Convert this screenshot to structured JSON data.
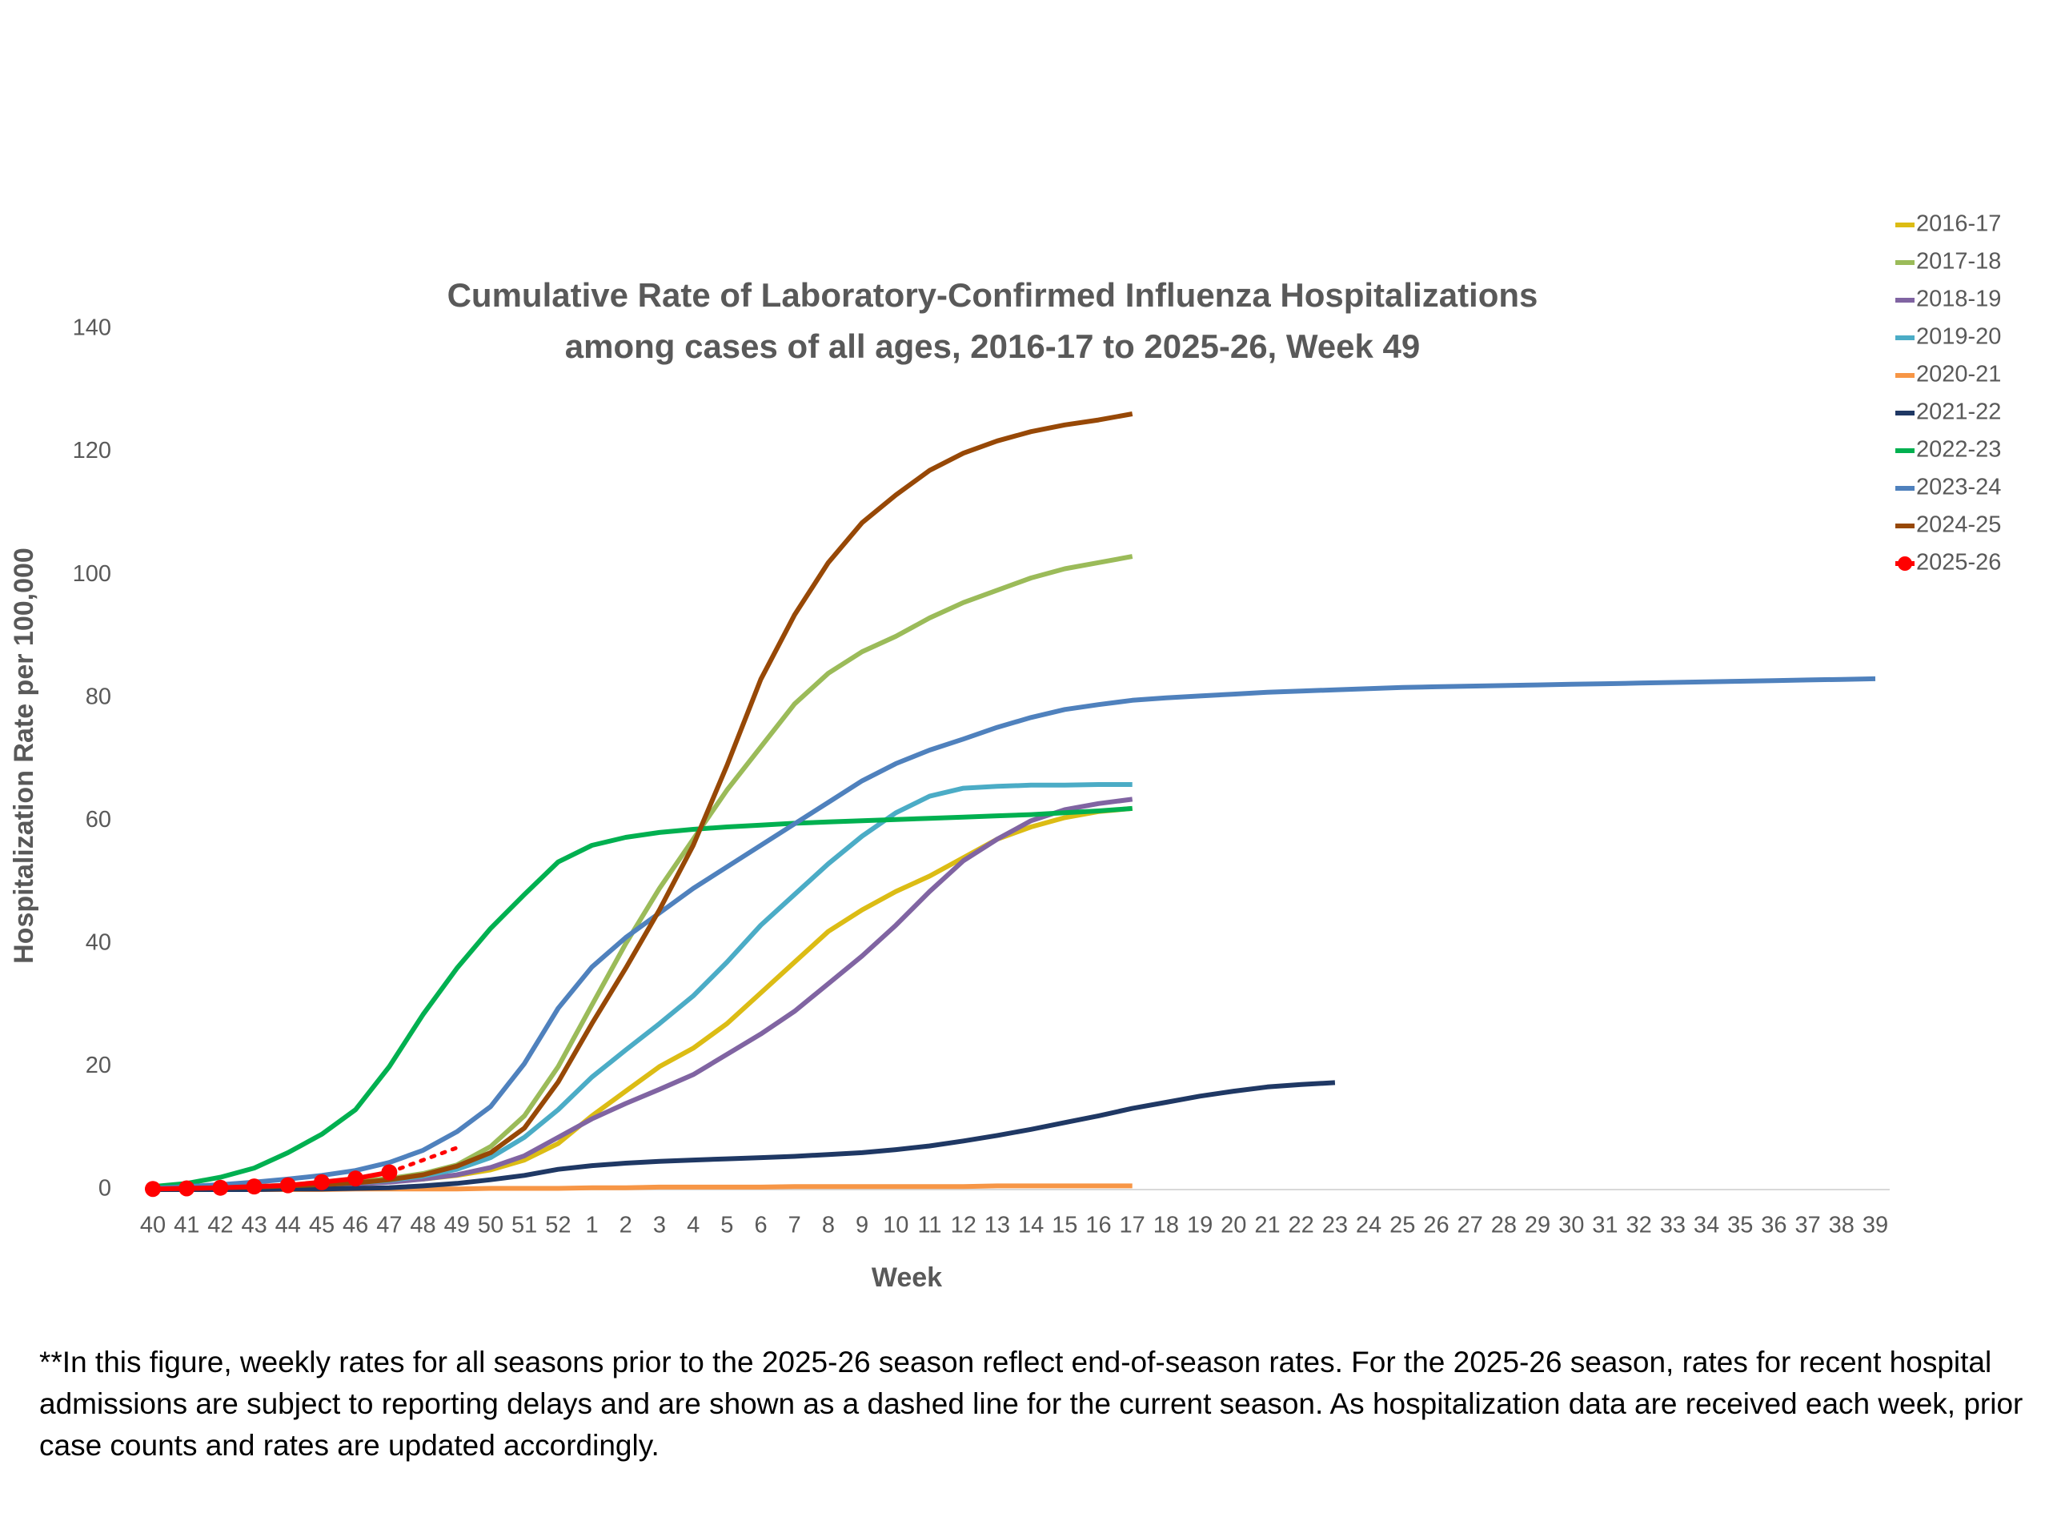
{
  "chart_data": {
    "type": "line",
    "title": "Cumulative Rate of Laboratory-Confirmed Influenza Hospitalizations",
    "subtitle": "among cases of all ages, 2016-17 to 2025-26, Week 49",
    "x_label": "Week",
    "y_label": "Hospitalization Rate per 100,000",
    "categories": [
      "40",
      "41",
      "42",
      "43",
      "44",
      "45",
      "46",
      "47",
      "48",
      "49",
      "50",
      "51",
      "52",
      "1",
      "2",
      "3",
      "4",
      "5",
      "6",
      "7",
      "8",
      "9",
      "10",
      "11",
      "12",
      "13",
      "14",
      "15",
      "16",
      "17",
      "18",
      "19",
      "20",
      "21",
      "22",
      "23",
      "24",
      "25",
      "26",
      "27",
      "28",
      "29",
      "30",
      "31",
      "32",
      "33",
      "34",
      "35",
      "36",
      "37",
      "38",
      "39"
    ],
    "ylim": [
      0,
      140
    ],
    "yticks": [
      0,
      20,
      40,
      60,
      80,
      100,
      120,
      140
    ],
    "grid": false,
    "legend": "right",
    "series": [
      {
        "name": "2016-17",
        "color": "#dcbc14",
        "values": [
          0.1,
          0.2,
          0.3,
          0.4,
          0.6,
          0.8,
          1.0,
          1.3,
          1.7,
          2.3,
          3.2,
          4.8,
          7.5,
          12,
          16,
          20,
          23,
          27,
          32,
          37,
          42,
          45.5,
          48.5,
          51,
          54,
          57,
          59,
          60.5,
          61.5,
          62,
          null,
          null,
          null,
          null,
          null,
          null,
          null,
          null,
          null,
          null,
          null,
          null,
          null,
          null,
          null,
          null,
          null,
          null,
          null,
          null,
          null,
          null
        ]
      },
      {
        "name": "2017-18",
        "color": "#9bbb59",
        "values": [
          0.1,
          0.2,
          0.3,
          0.5,
          0.7,
          1,
          1.3,
          1.8,
          2.6,
          4,
          7,
          12,
          20,
          30,
          40,
          49,
          57,
          65,
          72,
          79,
          84,
          87.5,
          90,
          93,
          95.5,
          97.5,
          99.5,
          101,
          102,
          103,
          null,
          null,
          null,
          null,
          null,
          null,
          null,
          null,
          null,
          null,
          null,
          null,
          null,
          null,
          null,
          null,
          null,
          null,
          null,
          null,
          null,
          null
        ]
      },
      {
        "name": "2018-19",
        "color": "#8064a2",
        "values": [
          0.1,
          0.2,
          0.3,
          0.4,
          0.5,
          0.7,
          0.9,
          1.2,
          1.7,
          2.4,
          3.6,
          5.5,
          8.5,
          11.5,
          14,
          16.3,
          18.7,
          22,
          25.3,
          29,
          33.5,
          38,
          43,
          48.5,
          53.5,
          57,
          60,
          61.8,
          62.8,
          63.5,
          null,
          null,
          null,
          null,
          null,
          null,
          null,
          null,
          null,
          null,
          null,
          null,
          null,
          null,
          null,
          null,
          null,
          null,
          null,
          null,
          null,
          null
        ]
      },
      {
        "name": "2019-20",
        "color": "#4bacc6",
        "values": [
          0.1,
          0.2,
          0.3,
          0.4,
          0.6,
          0.8,
          1.1,
          1.5,
          2.2,
          3.3,
          5.2,
          8.5,
          13,
          18.3,
          22.7,
          27,
          31.5,
          37,
          43,
          48,
          53,
          57.5,
          61.3,
          64,
          65.3,
          65.6,
          65.8,
          65.8,
          65.9,
          65.9,
          null,
          null,
          null,
          null,
          null,
          null,
          null,
          null,
          null,
          null,
          null,
          null,
          null,
          null,
          null,
          null,
          null,
          null,
          null,
          null,
          null,
          null
        ]
      },
      {
        "name": "2020-21",
        "color": "#f79646",
        "values": [
          0,
          0,
          0,
          0,
          0,
          0,
          0.1,
          0.1,
          0.1,
          0.1,
          0.2,
          0.2,
          0.2,
          0.3,
          0.3,
          0.4,
          0.4,
          0.4,
          0.4,
          0.5,
          0.5,
          0.5,
          0.5,
          0.5,
          0.5,
          0.6,
          0.6,
          0.6,
          0.6,
          0.6,
          null,
          null,
          null,
          null,
          null,
          null,
          null,
          null,
          null,
          null,
          null,
          null,
          null,
          null,
          null,
          null,
          null,
          null,
          null,
          null,
          null,
          null
        ]
      },
      {
        "name": "2021-22",
        "color": "#1f3864",
        "values": [
          0,
          0,
          0,
          0,
          0.1,
          0.1,
          0.2,
          0.3,
          0.6,
          1,
          1.6,
          2.3,
          3.3,
          3.9,
          4.3,
          4.6,
          4.8,
          5,
          5.2,
          5.4,
          5.7,
          6,
          6.5,
          7.1,
          7.9,
          8.8,
          9.8,
          10.9,
          12,
          13.2,
          14.2,
          15.2,
          16,
          16.7,
          17.1,
          17.4,
          null,
          null,
          null,
          null,
          null,
          null,
          null,
          null,
          null,
          null,
          null,
          null,
          null,
          null,
          null,
          null
        ]
      },
      {
        "name": "2022-23",
        "color": "#00b050",
        "values": [
          0.5,
          1,
          2,
          3.5,
          6,
          9,
          13,
          20,
          28.5,
          36,
          42.5,
          48,
          53.3,
          56,
          57.3,
          58.1,
          58.6,
          59,
          59.3,
          59.6,
          59.8,
          60,
          60.2,
          60.4,
          60.6,
          60.8,
          61,
          61.3,
          61.6,
          62,
          null,
          null,
          null,
          null,
          null,
          null,
          null,
          null,
          null,
          null,
          null,
          null,
          null,
          null,
          null,
          null,
          null,
          null,
          null,
          null,
          null,
          null
        ]
      },
      {
        "name": "2023-24",
        "color": "#4f81bd",
        "values": [
          0.2,
          0.5,
          0.8,
          1.2,
          1.7,
          2.3,
          3.1,
          4.4,
          6.4,
          9.4,
          13.5,
          20.5,
          29.5,
          36.2,
          41,
          45,
          49,
          52.5,
          56,
          59.5,
          63,
          66.5,
          69.3,
          71.5,
          73.3,
          75.2,
          76.8,
          78.1,
          78.9,
          79.6,
          80,
          80.3,
          80.6,
          80.9,
          81.1,
          81.3,
          81.5,
          81.7,
          81.8,
          81.9,
          82,
          82.1,
          82.2,
          82.3,
          82.4,
          82.5,
          82.6,
          82.7,
          82.8,
          82.9,
          83,
          83.1
        ]
      },
      {
        "name": "2024-25",
        "color": "#974806",
        "values": [
          0.1,
          0.2,
          0.3,
          0.4,
          0.6,
          0.8,
          1.1,
          1.6,
          2.4,
          3.8,
          6,
          10,
          17.5,
          27,
          36,
          45.5,
          56,
          69,
          83,
          93.5,
          102,
          108.5,
          113,
          117,
          119.8,
          121.8,
          123.3,
          124.4,
          125.2,
          126.2,
          null,
          null,
          null,
          null,
          null,
          null,
          null,
          null,
          null,
          null,
          null,
          null,
          null,
          null,
          null,
          null,
          null,
          null,
          null,
          null,
          null,
          null
        ]
      },
      {
        "name": "2025-26",
        "color": "#ff0000",
        "markers": true,
        "dashed_from": 7,
        "values": [
          0.1,
          0.2,
          0.3,
          0.5,
          0.7,
          1.2,
          1.8,
          2.8,
          4.8,
          6.8,
          null,
          null,
          null,
          null,
          null,
          null,
          null,
          null,
          null,
          null,
          null,
          null,
          null,
          null,
          null,
          null,
          null,
          null,
          null,
          null,
          null,
          null,
          null,
          null,
          null,
          null,
          null,
          null,
          null,
          null,
          null,
          null,
          null,
          null,
          null,
          null,
          null,
          null,
          null,
          null,
          null,
          null
        ]
      }
    ]
  },
  "note": "**In this figure, weekly rates for all seasons prior to the 2025-26 season reflect end-of-season rates. For the 2025-26 season, rates for recent hospital admissions are subject to reporting delays and are shown as a dashed line for the current season. As hospitalization data are received each week, prior case counts and rates are updated accordingly."
}
